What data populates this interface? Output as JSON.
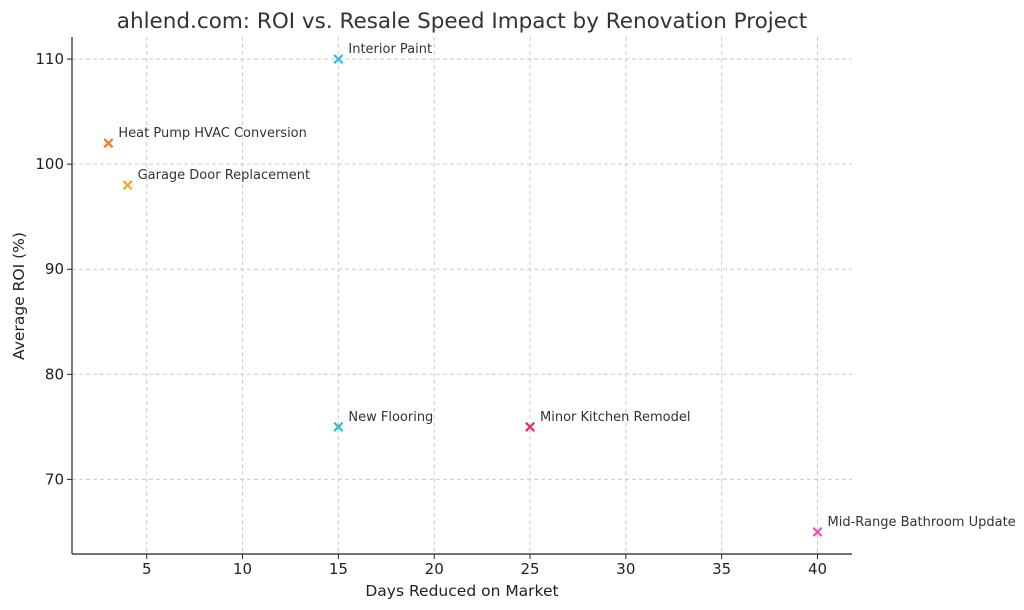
{
  "chart_data": {
    "type": "scatter",
    "title": "ahlend.com: ROI vs. Resale Speed Impact by Renovation Project",
    "xlabel": "Days Reduced on Market",
    "ylabel": "Average ROI (%)",
    "xlim": [
      1.1,
      41.8
    ],
    "ylim": [
      62.9,
      112.1
    ],
    "x_ticks": [
      5,
      10,
      15,
      20,
      25,
      30,
      35,
      40
    ],
    "y_ticks": [
      70,
      80,
      90,
      100,
      110
    ],
    "grid": true,
    "marker": "x",
    "points": [
      {
        "label": "Interior Paint",
        "x": 15,
        "y": 110,
        "color": "#3bb4e6"
      },
      {
        "label": "Heat Pump HVAC Conversion",
        "x": 3,
        "y": 102,
        "color": "#f07a2e"
      },
      {
        "label": "Garage Door Replacement",
        "x": 4,
        "y": 98,
        "color": "#f2a81d"
      },
      {
        "label": "New Flooring",
        "x": 15,
        "y": 75,
        "color": "#26c2c4"
      },
      {
        "label": "Minor Kitchen Remodel",
        "x": 25,
        "y": 75,
        "color": "#e0305a"
      },
      {
        "label": "Mid-Range Bathroom Update",
        "x": 40,
        "y": 65,
        "color": "#e94fbf"
      }
    ]
  }
}
